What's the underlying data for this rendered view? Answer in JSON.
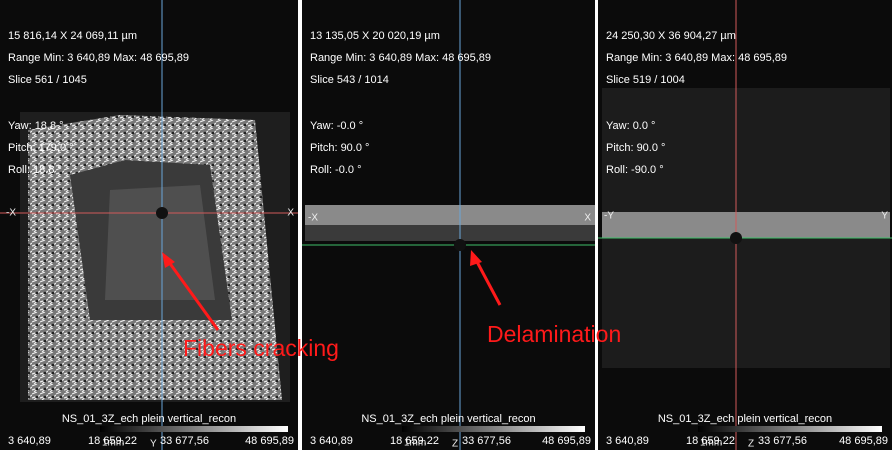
{
  "panels": [
    {
      "size": "15 816,14 X 24 069,11 µm",
      "range": "Range Min: 3 640,89 Max: 48 695,89",
      "slice": "Slice 561 / 1045",
      "yaw": "Yaw: 18.8 °",
      "pitch": "Pitch: 179.0 °",
      "roll": "Roll: 18.8 °",
      "axis_left": "-X",
      "axis_right": "X",
      "axis_bottom": "Y",
      "name": "NS_01_3Z_ech plein vertical_recon",
      "scale_bar": "1mm",
      "colorbar": [
        "3 640,89",
        "18 659,22",
        "33 677,56",
        "48 695,89"
      ]
    },
    {
      "size": "13 135,05 X 20 020,19 µm",
      "range": "Range Min: 3 640,89 Max: 48 695,89",
      "slice": "Slice 543 / 1014",
      "yaw": "Yaw: -0.0 °",
      "pitch": "Pitch: 90.0 °",
      "roll": "Roll: -0.0 °",
      "axis_left": "-X",
      "axis_right": "X",
      "axis_bottom": "Z",
      "name": "NS_01_3Z_ech plein vertical_recon",
      "scale_bar": "1mm",
      "colorbar": [
        "3 640,89",
        "18 659,22",
        "33 677,56",
        "48 695,89"
      ]
    },
    {
      "size": "24 250,30 X 36 904,27 µm",
      "range": "Range Min: 3 640,89 Max: 48 695,89",
      "slice": "Slice 519 / 1004",
      "yaw": "Yaw: 0.0 °",
      "pitch": "Pitch: 90.0 °",
      "roll": "Roll: -90.0 °",
      "axis_left": "-Y",
      "axis_right": "Y",
      "axis_bottom": "Z",
      "name": "NS_01_3Z_ech plein vertical_recon",
      "scale_bar": "1mm",
      "colorbar": [
        "3 640,89",
        "18 659,22",
        "33 677,56",
        "48 695,89"
      ]
    }
  ],
  "annotations": [
    "Fibers cracking",
    "Delamination"
  ]
}
